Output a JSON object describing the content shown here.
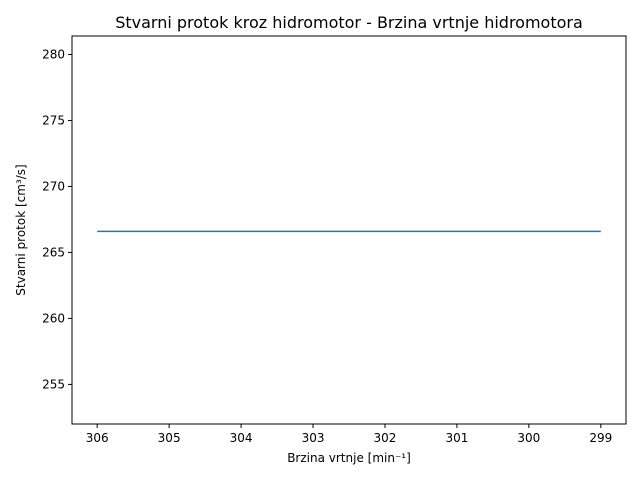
{
  "chart_data": {
    "type": "line",
    "title": "Stvarni protok kroz hidromotor - Brzina vrtnje hidromotora",
    "xlabel": "Brzina vrtnje [min⁻¹]",
    "ylabel": "Stvarni protok [cm³/s]",
    "x_inverted": true,
    "xlim": [
      306.35,
      298.65
    ],
    "ylim": [
      252,
      281.4
    ],
    "xticks": [
      306,
      305,
      304,
      303,
      302,
      301,
      300,
      299
    ],
    "yticks": [
      255,
      260,
      265,
      270,
      275,
      280
    ],
    "grid": false,
    "series": [
      {
        "color": "#1f77b4",
        "x": [
          306,
          305,
          304,
          303,
          302,
          301,
          300,
          299
        ],
        "y": [
          266.6,
          266.6,
          266.6,
          266.6,
          266.6,
          266.6,
          266.6,
          266.6
        ]
      }
    ]
  }
}
